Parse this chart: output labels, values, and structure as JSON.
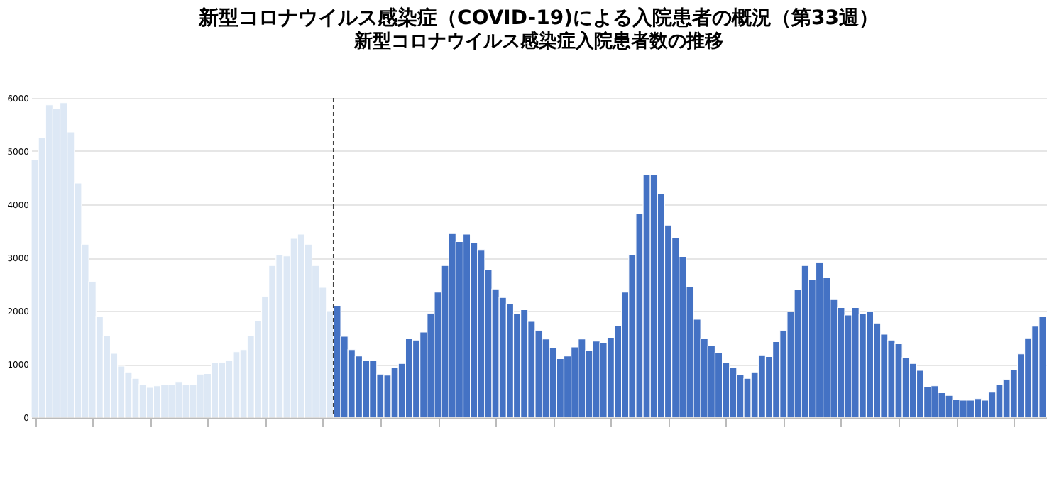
{
  "chart_data": {
    "type": "bar",
    "title": "新型コロナウイルス感染症（COVID-19)による入院患者の概況（第33週）",
    "subtitle": "新型コロナウイルス感染症入院患者数の推移",
    "categories": [
      null,
      null,
      null,
      null,
      null,
      null,
      null,
      null,
      null,
      null,
      null,
      null,
      null,
      null,
      null,
      null,
      null,
      null,
      null,
      null,
      null,
      null,
      null,
      null,
      null,
      null,
      null,
      null,
      null,
      null,
      null,
      null,
      null,
      null,
      null,
      null,
      null,
      null,
      null,
      null,
      null,
      null,
      null,
      null,
      null,
      null,
      null,
      null,
      null,
      null,
      null,
      null,
      null,
      null,
      null,
      null,
      null,
      null,
      null,
      null,
      null,
      null,
      null,
      null,
      null,
      null,
      null,
      null,
      null,
      null,
      null,
      null,
      null,
      null,
      null,
      null,
      null,
      null,
      null,
      null,
      null,
      null,
      null,
      null,
      null,
      null,
      null,
      null,
      null,
      null,
      null,
      null,
      null,
      null,
      null,
      null,
      null,
      null,
      null,
      null,
      null,
      null,
      null,
      null,
      null,
      null,
      null,
      null,
      null,
      null,
      null,
      null,
      null,
      null,
      null,
      null,
      null,
      null,
      null,
      null,
      null,
      null,
      null,
      null,
      null,
      null,
      null,
      null,
      null,
      null,
      null,
      null,
      null,
      null,
      null,
      null,
      null,
      null,
      null,
      null,
      null
    ],
    "series": [
      {
        "color": "#dde8f5",
        "values": [
          4840,
          5260,
          5870,
          5800,
          5910,
          5360,
          4400,
          3250,
          2550,
          1900,
          1530,
          1200,
          960,
          850,
          730,
          620,
          560,
          590,
          610,
          620,
          670,
          620,
          620,
          810,
          820,
          1020,
          1030,
          1070,
          1230,
          1270,
          1540,
          1810,
          2270,
          2850,
          3060,
          3030,
          3360,
          3440,
          3250,
          2850,
          2440,
          2000,
          null,
          null,
          null,
          null,
          null,
          null,
          null,
          null,
          null,
          null,
          null,
          null,
          null,
          null,
          null,
          null,
          null,
          null,
          null,
          null,
          null,
          null,
          null,
          null,
          null,
          null,
          null,
          null,
          null,
          null,
          null,
          null,
          null,
          null,
          null,
          null,
          null,
          null,
          null,
          null,
          null,
          null,
          null,
          null,
          null,
          null,
          null,
          null,
          null,
          null,
          null,
          null,
          null,
          null,
          null,
          null,
          null,
          null,
          null,
          null,
          null,
          null,
          null,
          null,
          null,
          null,
          null,
          null,
          null,
          null,
          null,
          null,
          null,
          null,
          null,
          null,
          null,
          null,
          null,
          null,
          null,
          null,
          null,
          null,
          null,
          null,
          null,
          null,
          null,
          null,
          null,
          null,
          null,
          null,
          null,
          null,
          null,
          null,
          null
        ]
      },
      {
        "color": "#4472c4",
        "values": [
          null,
          null,
          null,
          null,
          null,
          null,
          null,
          null,
          null,
          null,
          null,
          null,
          null,
          null,
          null,
          null,
          null,
          null,
          null,
          null,
          null,
          null,
          null,
          null,
          null,
          null,
          null,
          null,
          null,
          null,
          null,
          null,
          null,
          null,
          null,
          null,
          null,
          null,
          null,
          null,
          null,
          null,
          2100,
          1520,
          1270,
          1150,
          1060,
          1060,
          810,
          790,
          930,
          1010,
          1480,
          1450,
          1600,
          1950,
          2350,
          2850,
          3450,
          3300,
          3440,
          3280,
          3150,
          2770,
          2410,
          2250,
          2130,
          1940,
          2020,
          1800,
          1630,
          1470,
          1300,
          1100,
          1150,
          1320,
          1470,
          1260,
          1430,
          1400,
          1500,
          1720,
          2350,
          3060,
          3820,
          4560,
          4560,
          4200,
          3610,
          3370,
          3020,
          2450,
          1840,
          1480,
          1340,
          1220,
          1020,
          940,
          800,
          730,
          850,
          1170,
          1140,
          1420,
          1630,
          1980,
          2400,
          2850,
          2580,
          2910,
          2620,
          2210,
          2060,
          1920,
          2060,
          1940,
          1990,
          1770,
          1560,
          1450,
          1380,
          1120,
          1010,
          880,
          570,
          590,
          460,
          410,
          330,
          320,
          320,
          350,
          320,
          470,
          620,
          710,
          890,
          1190,
          1490,
          1710,
          1900
        ]
      }
    ],
    "ylim": [
      0,
      6000
    ],
    "yticks": [
      0,
      1000,
      2000,
      3000,
      4000,
      5000,
      6000
    ],
    "grid": "y"
  }
}
